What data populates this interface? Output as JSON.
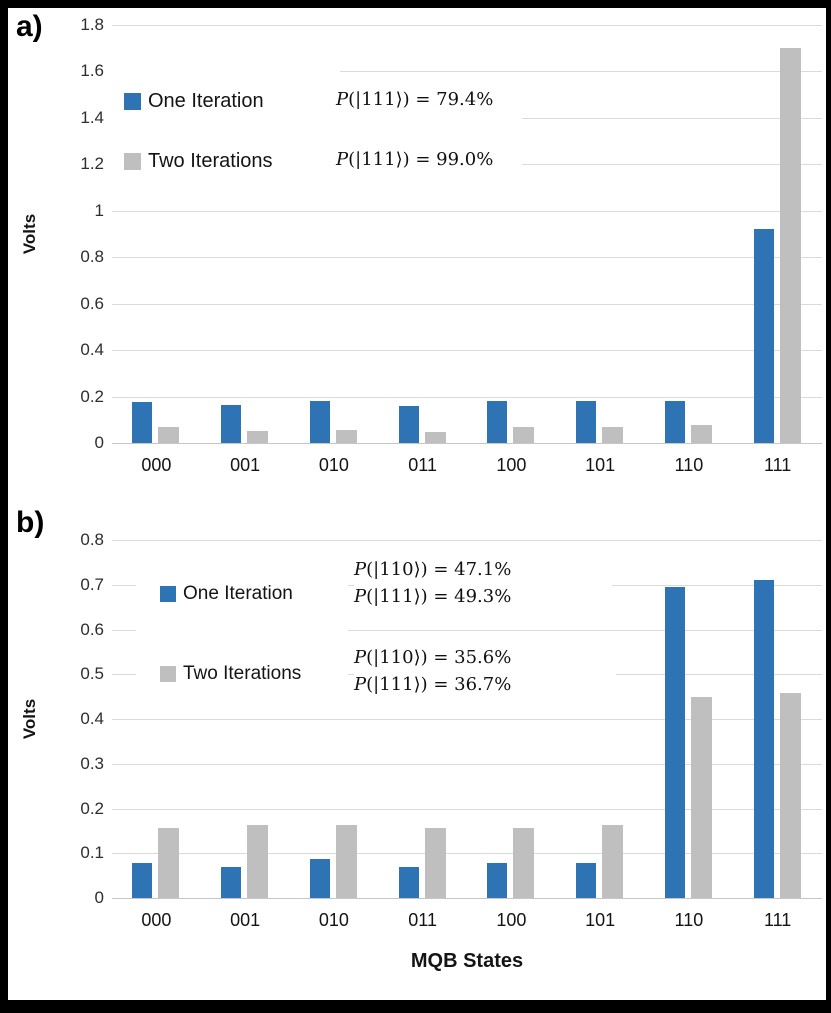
{
  "figure": {
    "panel_a_label": "a)",
    "panel_b_label": "b)",
    "colors": {
      "one_iteration_blue": "#2E74B5",
      "two_iterations_gray": "#BFBFBF",
      "gridline": "#DBDBDB"
    }
  },
  "chart_data": [
    {
      "id": "a",
      "type": "bar",
      "panel_label": "a)",
      "categories": [
        "000",
        "001",
        "010",
        "011",
        "100",
        "101",
        "110",
        "111"
      ],
      "series": [
        {
          "name": "One Iteration",
          "color": "#2E74B5",
          "values": [
            0.175,
            0.165,
            0.18,
            0.16,
            0.18,
            0.18,
            0.18,
            0.92
          ]
        },
        {
          "name": "Two Iterations",
          "color": "#BFBFBF",
          "values": [
            0.07,
            0.05,
            0.055,
            0.048,
            0.068,
            0.068,
            0.078,
            1.7
          ]
        }
      ],
      "ylabel": "Volts",
      "xlabel": "",
      "ylim": [
        0,
        1.8
      ],
      "ytick_step": 0.2,
      "yticks": [
        "1.8",
        "1.6",
        "1.4",
        "1.2",
        "1",
        "0.8",
        "0.6",
        "0.4",
        "0.2",
        "0"
      ],
      "grid": true,
      "legend_position": "inside-top-left",
      "annotations": [
        {
          "lines": [
            "P(|111⟩) = 79.4%"
          ]
        },
        {
          "lines": [
            "P(|111⟩) = 99.0%"
          ]
        }
      ]
    },
    {
      "id": "b",
      "type": "bar",
      "panel_label": "b)",
      "categories": [
        "000",
        "001",
        "010",
        "011",
        "100",
        "101",
        "110",
        "111"
      ],
      "series": [
        {
          "name": "One Iteration",
          "color": "#2E74B5",
          "values": [
            0.078,
            0.07,
            0.087,
            0.07,
            0.079,
            0.079,
            0.695,
            0.71
          ]
        },
        {
          "name": "Two Iterations",
          "color": "#BFBFBF",
          "values": [
            0.157,
            0.164,
            0.164,
            0.157,
            0.157,
            0.164,
            0.45,
            0.457
          ]
        }
      ],
      "ylabel": "Volts",
      "xlabel": "MQB States",
      "ylim": [
        0,
        0.8
      ],
      "ytick_step": 0.1,
      "yticks": [
        "0.8",
        "0.7",
        "0.6",
        "0.5",
        "0.4",
        "0.3",
        "0.2",
        "0.1",
        "0"
      ],
      "grid": true,
      "legend_position": "inside-top-left",
      "annotations": [
        {
          "lines": [
            "P(|110⟩) = 47.1%",
            "P(|111⟩) = 49.3%"
          ]
        },
        {
          "lines": [
            "P(|110⟩) = 35.6%",
            "P(|111⟩) = 36.7%"
          ]
        }
      ]
    }
  ]
}
